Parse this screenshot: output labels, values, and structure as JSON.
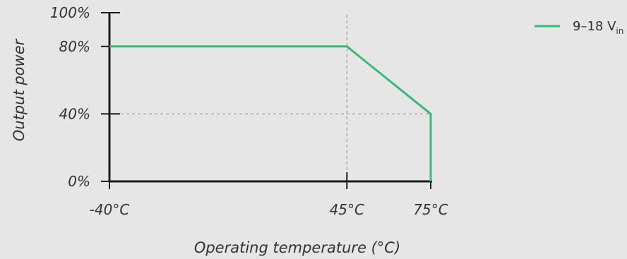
{
  "chart_data": {
    "type": "line",
    "title": "",
    "xlabel": "Operating temperature (°C)",
    "ylabel": "Output power",
    "x_tick_labels": [
      {
        "value": -40,
        "label": "-40°C"
      },
      {
        "value": 45,
        "label": "45°C"
      },
      {
        "value": 75,
        "label": "75°C"
      }
    ],
    "y_tick_labels": [
      {
        "value": 0,
        "label": "0%"
      },
      {
        "value": 40,
        "label": "40%"
      },
      {
        "value": 80,
        "label": "80%"
      },
      {
        "value": 100,
        "label": "100%"
      }
    ],
    "xlim": [
      -40,
      75
    ],
    "ylim": [
      0,
      100
    ],
    "grid": false,
    "reference_lines": [
      {
        "orientation": "vertical",
        "value": 45,
        "from": 0,
        "to": 100
      },
      {
        "orientation": "horizontal",
        "value": 40,
        "from": -40,
        "to": 75
      }
    ],
    "series": [
      {
        "legend": {
          "main": "9–18 V",
          "subscript": "in"
        },
        "color": "#3cb878",
        "points": [
          {
            "x": -40,
            "y": 80
          },
          {
            "x": 45,
            "y": 80
          },
          {
            "x": 75,
            "y": 40
          },
          {
            "x": 75,
            "y": 0
          }
        ]
      }
    ],
    "legend_position": "top-right",
    "axis_color": "#1a1a1a",
    "reference_line_color": "#888888"
  }
}
